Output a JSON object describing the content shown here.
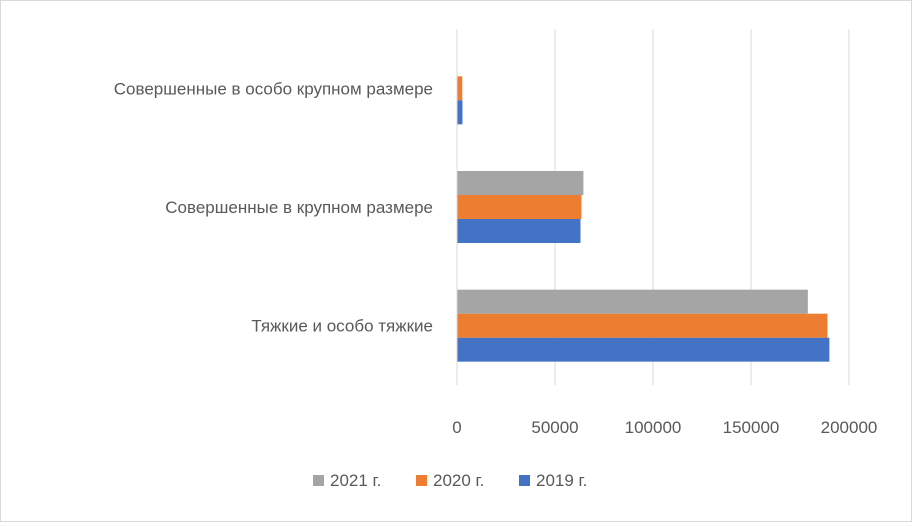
{
  "chart_data": {
    "type": "bar",
    "orientation": "horizontal",
    "categories": [
      "Тяжкие и  особо тяжкие",
      "Совершенные в крупном размере",
      "Совершенные в особо крупном размере"
    ],
    "series": [
      {
        "name": "2019 г.",
        "color": "#4472C4",
        "values": [
          190000,
          63000,
          2800
        ]
      },
      {
        "name": "2020 г.",
        "color": "#ED7D31",
        "values": [
          189000,
          63500,
          2700
        ]
      },
      {
        "name": "2021 г.",
        "color": "#A5A5A5",
        "values": [
          179000,
          64500,
          0
        ]
      }
    ],
    "xlim": [
      0,
      200000
    ],
    "xticks": [
      "0",
      "50000",
      "100000",
      "150000",
      "200000"
    ],
    "grid": true,
    "legend_position": "bottom",
    "legend_order": [
      2,
      1,
      0
    ]
  }
}
